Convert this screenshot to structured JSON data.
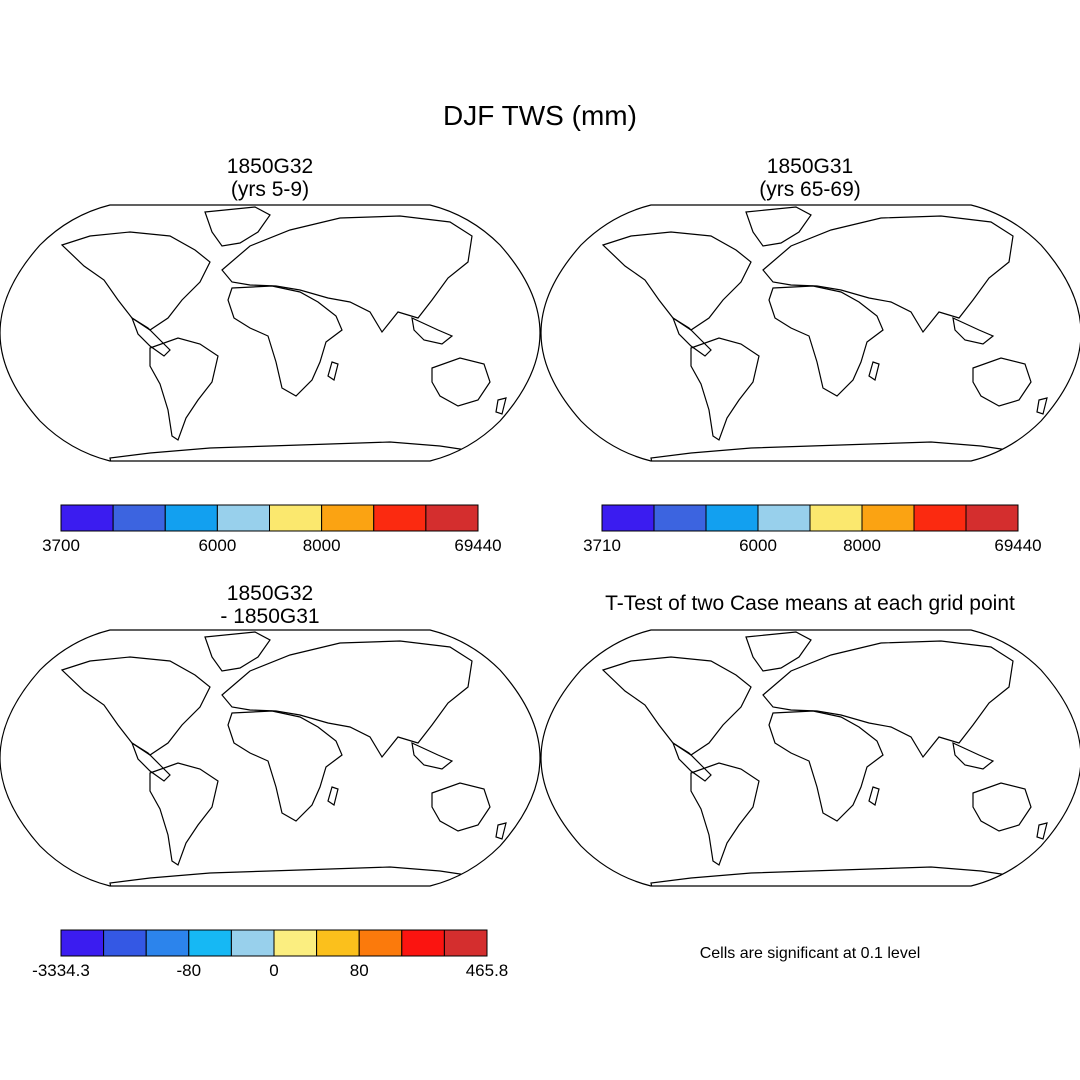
{
  "title": "DJF TWS (mm)",
  "colors": {
    "pal8": [
      "#3b1cf0",
      "#3c64e0",
      "#12a0f0",
      "#98d0ec",
      "#fbe86e",
      "#fba312",
      "#fb2a10",
      "#d42e2e"
    ],
    "pal10": [
      "#3b1cf0",
      "#3458e4",
      "#2c84ec",
      "#16b8f4",
      "#98d0ec",
      "#fbee80",
      "#fbc01c",
      "#fb7a0c",
      "#fb1410",
      "#d42e2e"
    ],
    "ocean": "#ffffff",
    "signif": "#ff0000"
  },
  "panels": [
    {
      "id": "p1",
      "title_line1": "1850G32",
      "title_line2": "(yrs 5-9)",
      "colorbar": {
        "boxes": 8,
        "labels": [
          "3700",
          "6000",
          "8000",
          "69440"
        ],
        "label_at": [
          0,
          3,
          5,
          8
        ]
      }
    },
    {
      "id": "p2",
      "title_line1": "1850G31",
      "title_line2": "(yrs 65-69)",
      "colorbar": {
        "boxes": 8,
        "labels": [
          "3710",
          "6000",
          "8000",
          "69440"
        ],
        "label_at": [
          0,
          3,
          5,
          8
        ]
      }
    },
    {
      "id": "p3",
      "title_line1": "1850G32",
      "title_line2": "- 1850G31",
      "colorbar": {
        "boxes": 10,
        "labels": [
          "-3334.3",
          "-80",
          "0",
          "80",
          "465.8"
        ],
        "label_at": [
          0,
          3,
          5,
          7,
          10
        ]
      }
    },
    {
      "id": "p4",
      "title_line1": "T-Test of two Case means at each grid point",
      "note": "Cells are significant at 0.1 level"
    }
  ]
}
